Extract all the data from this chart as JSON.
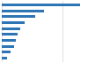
{
  "values": [
    26,
    14,
    11,
    7.5,
    6,
    5.2,
    4.8,
    4,
    3,
    1.8
  ],
  "bar_color": "#2e75b6",
  "background_color": "#ffffff",
  "grid_color": "#d3d3d3",
  "xlim": [
    0,
    28
  ],
  "figsize": [
    1.0,
    0.71
  ],
  "dpi": 100,
  "bar_height": 0.45
}
